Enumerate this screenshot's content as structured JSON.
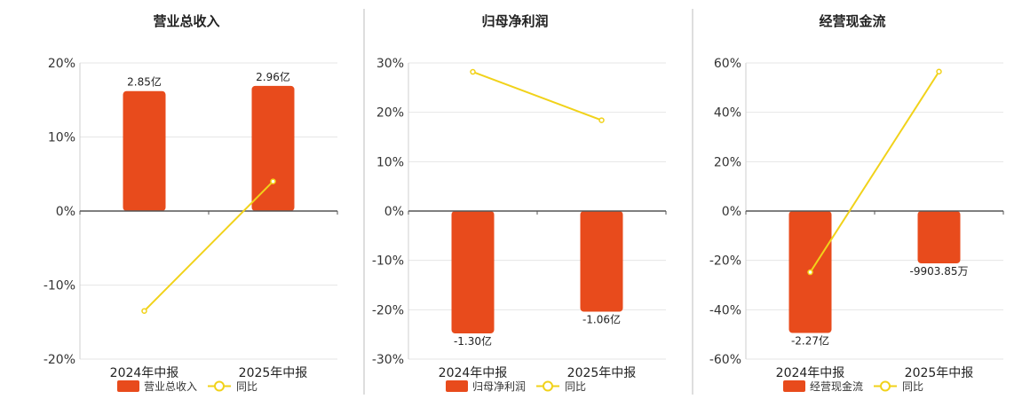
{
  "colors": {
    "bar": "#e84b1c",
    "line": "#f1d21a",
    "grid": "#e6e6e6",
    "axis": "#555555",
    "divider": "#bdbdbd"
  },
  "chart_data": [
    {
      "type": "bar",
      "title": "营业总收入",
      "categories": [
        "2024年中报",
        "2025年中报"
      ],
      "ylim": [
        -20,
        20
      ],
      "yticks": [
        20,
        10,
        0,
        -10,
        -20
      ],
      "tick_format": "{v}%",
      "bars": {
        "name": "营业总收入",
        "heights": [
          16.2,
          16.9
        ],
        "labels": [
          "2.85亿",
          "2.96亿"
        ]
      },
      "line": {
        "name": "同比",
        "values": [
          -13.5,
          4.0
        ]
      },
      "legend": "bottom"
    },
    {
      "type": "bar",
      "title": "归母净利润",
      "categories": [
        "2024年中报",
        "2025年中报"
      ],
      "ylim": [
        -30,
        30
      ],
      "yticks": [
        30,
        20,
        10,
        0,
        -10,
        -20,
        -30
      ],
      "tick_format": "{v}%",
      "bars": {
        "name": "归母净利润",
        "heights": [
          -24.8,
          -20.4
        ],
        "labels": [
          "-1.30亿",
          "-1.06亿"
        ]
      },
      "line": {
        "name": "同比",
        "values": [
          28.2,
          18.4
        ]
      },
      "legend": "bottom"
    },
    {
      "type": "bar",
      "title": "经营现金流",
      "categories": [
        "2024年中报",
        "2025年中报"
      ],
      "ylim": [
        -60,
        60
      ],
      "yticks": [
        60,
        40,
        20,
        0,
        -20,
        -40,
        -60
      ],
      "tick_format": "{v}%",
      "bars": {
        "name": "经营现金流",
        "heights": [
          -49.4,
          -21.2
        ],
        "labels": [
          "-2.27亿",
          "-9903.85万"
        ]
      },
      "line": {
        "name": "同比",
        "values": [
          -24.8,
          56.5
        ]
      },
      "legend": "bottom"
    }
  ]
}
